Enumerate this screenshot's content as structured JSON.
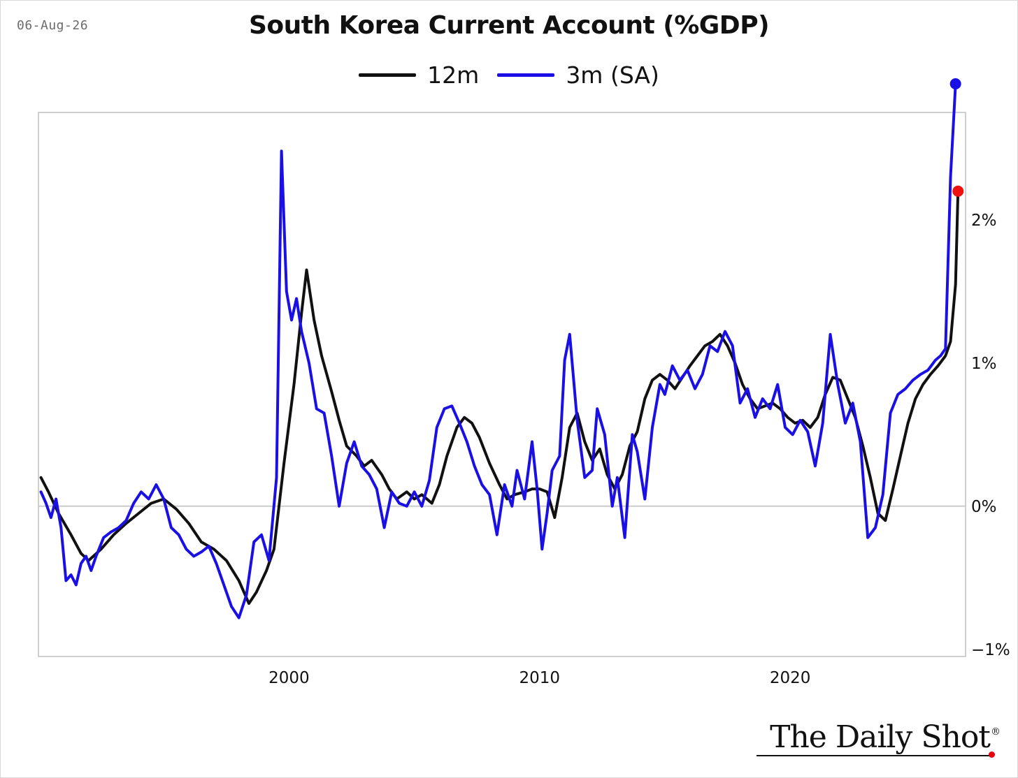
{
  "header": {
    "date": "06-Aug-26",
    "title": "South Korea Current Account (%GDP)"
  },
  "brand": {
    "name": "The Daily Shot",
    "mark": "®"
  },
  "colors": {
    "series_12m": "#111111",
    "series_3m": "#1a10e6",
    "last_point_12m": "#ee1111",
    "last_point_3m": "#1a10e6",
    "zero_line": "#cccccc",
    "plot_border": "#cfcfcf"
  },
  "chart_data": {
    "type": "line",
    "title": "South Korea Current Account (%GDP)",
    "xlabel": "",
    "ylabel": "",
    "xlim": [
      1990.0,
      2027.0
    ],
    "ylim": [
      -1.05,
      2.75
    ],
    "x_ticks": [
      2000,
      2010,
      2020
    ],
    "x_tick_labels": [
      "2000",
      "2010",
      "2020"
    ],
    "y_ticks": [
      -1,
      0,
      1,
      2
    ],
    "y_tick_labels": [
      "−1%",
      "0%",
      "1%",
      "2%"
    ],
    "y_axis_side": "right",
    "grid": false,
    "zero_line": true,
    "legend_position": "top-center",
    "series": [
      {
        "name": "12m",
        "color": "#111111",
        "points": [
          [
            1990.1,
            0.2
          ],
          [
            1990.4,
            0.1
          ],
          [
            1990.8,
            -0.05
          ],
          [
            1991.3,
            -0.2
          ],
          [
            1991.7,
            -0.33
          ],
          [
            1992.0,
            -0.38
          ],
          [
            1992.5,
            -0.3
          ],
          [
            1993.0,
            -0.2
          ],
          [
            1993.5,
            -0.12
          ],
          [
            1994.0,
            -0.05
          ],
          [
            1994.5,
            0.02
          ],
          [
            1995.0,
            0.05
          ],
          [
            1995.5,
            -0.02
          ],
          [
            1996.0,
            -0.12
          ],
          [
            1996.5,
            -0.25
          ],
          [
            1997.0,
            -0.3
          ],
          [
            1997.5,
            -0.38
          ],
          [
            1998.0,
            -0.52
          ],
          [
            1998.4,
            -0.68
          ],
          [
            1998.7,
            -0.6
          ],
          [
            1999.1,
            -0.45
          ],
          [
            1999.4,
            -0.3
          ],
          [
            1999.8,
            0.3
          ],
          [
            2000.2,
            0.85
          ],
          [
            2000.5,
            1.35
          ],
          [
            2000.7,
            1.65
          ],
          [
            2001.0,
            1.3
          ],
          [
            2001.3,
            1.05
          ],
          [
            2001.7,
            0.8
          ],
          [
            2002.0,
            0.6
          ],
          [
            2002.3,
            0.42
          ],
          [
            2002.7,
            0.35
          ],
          [
            2003.0,
            0.28
          ],
          [
            2003.3,
            0.32
          ],
          [
            2003.7,
            0.22
          ],
          [
            2004.0,
            0.12
          ],
          [
            2004.3,
            0.05
          ],
          [
            2004.7,
            0.1
          ],
          [
            2005.0,
            0.05
          ],
          [
            2005.3,
            0.08
          ],
          [
            2005.7,
            0.02
          ],
          [
            2006.0,
            0.15
          ],
          [
            2006.3,
            0.35
          ],
          [
            2006.7,
            0.55
          ],
          [
            2007.0,
            0.62
          ],
          [
            2007.3,
            0.58
          ],
          [
            2007.6,
            0.48
          ],
          [
            2008.0,
            0.3
          ],
          [
            2008.4,
            0.15
          ],
          [
            2008.7,
            0.05
          ],
          [
            2009.0,
            0.08
          ],
          [
            2009.4,
            0.1
          ],
          [
            2009.7,
            0.12
          ],
          [
            2010.0,
            0.12
          ],
          [
            2010.3,
            0.1
          ],
          [
            2010.6,
            -0.08
          ],
          [
            2010.9,
            0.2
          ],
          [
            2011.2,
            0.55
          ],
          [
            2011.5,
            0.65
          ],
          [
            2011.8,
            0.45
          ],
          [
            2012.1,
            0.32
          ],
          [
            2012.4,
            0.4
          ],
          [
            2012.7,
            0.22
          ],
          [
            2013.0,
            0.12
          ],
          [
            2013.3,
            0.22
          ],
          [
            2013.6,
            0.42
          ],
          [
            2013.9,
            0.52
          ],
          [
            2014.2,
            0.75
          ],
          [
            2014.5,
            0.88
          ],
          [
            2014.8,
            0.92
          ],
          [
            2015.1,
            0.88
          ],
          [
            2015.4,
            0.82
          ],
          [
            2015.7,
            0.9
          ],
          [
            2016.0,
            0.98
          ],
          [
            2016.3,
            1.05
          ],
          [
            2016.6,
            1.12
          ],
          [
            2016.9,
            1.15
          ],
          [
            2017.2,
            1.2
          ],
          [
            2017.5,
            1.12
          ],
          [
            2017.8,
            1.0
          ],
          [
            2018.1,
            0.85
          ],
          [
            2018.4,
            0.75
          ],
          [
            2018.7,
            0.68
          ],
          [
            2019.0,
            0.7
          ],
          [
            2019.3,
            0.72
          ],
          [
            2019.6,
            0.68
          ],
          [
            2019.9,
            0.62
          ],
          [
            2020.2,
            0.58
          ],
          [
            2020.5,
            0.6
          ],
          [
            2020.8,
            0.55
          ],
          [
            2021.1,
            0.62
          ],
          [
            2021.4,
            0.78
          ],
          [
            2021.7,
            0.9
          ],
          [
            2022.0,
            0.88
          ],
          [
            2022.3,
            0.75
          ],
          [
            2022.6,
            0.62
          ],
          [
            2022.9,
            0.42
          ],
          [
            2023.2,
            0.2
          ],
          [
            2023.5,
            -0.05
          ],
          [
            2023.8,
            -0.1
          ],
          [
            2024.1,
            0.12
          ],
          [
            2024.4,
            0.35
          ],
          [
            2024.7,
            0.58
          ],
          [
            2025.0,
            0.75
          ],
          [
            2025.3,
            0.85
          ],
          [
            2025.6,
            0.92
          ],
          [
            2025.9,
            0.98
          ],
          [
            2026.2,
            1.05
          ],
          [
            2026.4,
            1.15
          ],
          [
            2026.6,
            1.55
          ],
          [
            2026.7,
            2.2
          ]
        ],
        "last_value": 2.2
      },
      {
        "name": "3m (SA)",
        "color": "#1a10e6",
        "points": [
          [
            1990.1,
            0.1
          ],
          [
            1990.3,
            0.02
          ],
          [
            1990.5,
            -0.08
          ],
          [
            1990.7,
            0.05
          ],
          [
            1990.9,
            -0.15
          ],
          [
            1991.1,
            -0.52
          ],
          [
            1991.3,
            -0.48
          ],
          [
            1991.5,
            -0.55
          ],
          [
            1991.7,
            -0.4
          ],
          [
            1991.9,
            -0.35
          ],
          [
            1992.1,
            -0.45
          ],
          [
            1992.3,
            -0.35
          ],
          [
            1992.6,
            -0.22
          ],
          [
            1992.9,
            -0.18
          ],
          [
            1993.2,
            -0.15
          ],
          [
            1993.5,
            -0.1
          ],
          [
            1993.8,
            0.02
          ],
          [
            1994.1,
            0.1
          ],
          [
            1994.4,
            0.05
          ],
          [
            1994.7,
            0.15
          ],
          [
            1995.0,
            0.05
          ],
          [
            1995.3,
            -0.15
          ],
          [
            1995.6,
            -0.2
          ],
          [
            1995.9,
            -0.3
          ],
          [
            1996.2,
            -0.35
          ],
          [
            1996.5,
            -0.32
          ],
          [
            1996.8,
            -0.28
          ],
          [
            1997.1,
            -0.4
          ],
          [
            1997.4,
            -0.55
          ],
          [
            1997.7,
            -0.7
          ],
          [
            1998.0,
            -0.78
          ],
          [
            1998.3,
            -0.62
          ],
          [
            1998.6,
            -0.25
          ],
          [
            1998.9,
            -0.2
          ],
          [
            1999.2,
            -0.38
          ],
          [
            1999.5,
            0.2
          ],
          [
            1999.7,
            2.48
          ],
          [
            1999.9,
            1.5
          ],
          [
            2000.1,
            1.3
          ],
          [
            2000.3,
            1.45
          ],
          [
            2000.5,
            1.22
          ],
          [
            2000.8,
            1.0
          ],
          [
            2001.1,
            0.68
          ],
          [
            2001.4,
            0.65
          ],
          [
            2001.7,
            0.35
          ],
          [
            2002.0,
            0.0
          ],
          [
            2002.3,
            0.3
          ],
          [
            2002.6,
            0.45
          ],
          [
            2002.9,
            0.28
          ],
          [
            2003.2,
            0.22
          ],
          [
            2003.5,
            0.12
          ],
          [
            2003.8,
            -0.15
          ],
          [
            2004.1,
            0.1
          ],
          [
            2004.4,
            0.02
          ],
          [
            2004.7,
            0.0
          ],
          [
            2005.0,
            0.1
          ],
          [
            2005.3,
            0.0
          ],
          [
            2005.6,
            0.18
          ],
          [
            2005.9,
            0.55
          ],
          [
            2006.2,
            0.68
          ],
          [
            2006.5,
            0.7
          ],
          [
            2006.8,
            0.58
          ],
          [
            2007.1,
            0.45
          ],
          [
            2007.4,
            0.28
          ],
          [
            2007.7,
            0.15
          ],
          [
            2008.0,
            0.08
          ],
          [
            2008.3,
            -0.2
          ],
          [
            2008.6,
            0.15
          ],
          [
            2008.9,
            0.0
          ],
          [
            2009.1,
            0.25
          ],
          [
            2009.4,
            0.05
          ],
          [
            2009.7,
            0.45
          ],
          [
            2009.9,
            0.12
          ],
          [
            2010.1,
            -0.3
          ],
          [
            2010.3,
            -0.05
          ],
          [
            2010.5,
            0.25
          ],
          [
            2010.8,
            0.35
          ],
          [
            2011.0,
            1.02
          ],
          [
            2011.2,
            1.2
          ],
          [
            2011.5,
            0.6
          ],
          [
            2011.8,
            0.2
          ],
          [
            2012.1,
            0.25
          ],
          [
            2012.3,
            0.68
          ],
          [
            2012.6,
            0.5
          ],
          [
            2012.9,
            0.0
          ],
          [
            2013.1,
            0.2
          ],
          [
            2013.4,
            -0.22
          ],
          [
            2013.7,
            0.5
          ],
          [
            2013.9,
            0.38
          ],
          [
            2014.2,
            0.05
          ],
          [
            2014.5,
            0.55
          ],
          [
            2014.8,
            0.85
          ],
          [
            2015.0,
            0.78
          ],
          [
            2015.3,
            0.98
          ],
          [
            2015.6,
            0.88
          ],
          [
            2015.9,
            0.95
          ],
          [
            2016.2,
            0.82
          ],
          [
            2016.5,
            0.92
          ],
          [
            2016.8,
            1.12
          ],
          [
            2017.1,
            1.08
          ],
          [
            2017.4,
            1.22
          ],
          [
            2017.7,
            1.12
          ],
          [
            2018.0,
            0.72
          ],
          [
            2018.3,
            0.82
          ],
          [
            2018.6,
            0.62
          ],
          [
            2018.9,
            0.75
          ],
          [
            2019.2,
            0.68
          ],
          [
            2019.5,
            0.85
          ],
          [
            2019.8,
            0.55
          ],
          [
            2020.1,
            0.5
          ],
          [
            2020.4,
            0.6
          ],
          [
            2020.7,
            0.52
          ],
          [
            2021.0,
            0.28
          ],
          [
            2021.3,
            0.58
          ],
          [
            2021.6,
            1.2
          ],
          [
            2021.9,
            0.85
          ],
          [
            2022.2,
            0.58
          ],
          [
            2022.5,
            0.72
          ],
          [
            2022.8,
            0.45
          ],
          [
            2023.1,
            -0.22
          ],
          [
            2023.4,
            -0.15
          ],
          [
            2023.7,
            0.08
          ],
          [
            2024.0,
            0.65
          ],
          [
            2024.3,
            0.78
          ],
          [
            2024.6,
            0.82
          ],
          [
            2024.9,
            0.88
          ],
          [
            2025.2,
            0.92
          ],
          [
            2025.5,
            0.95
          ],
          [
            2025.8,
            1.02
          ],
          [
            2026.0,
            1.05
          ],
          [
            2026.2,
            1.1
          ],
          [
            2026.4,
            2.3
          ],
          [
            2026.6,
            2.95
          ]
        ],
        "last_value": 2.95
      }
    ]
  }
}
